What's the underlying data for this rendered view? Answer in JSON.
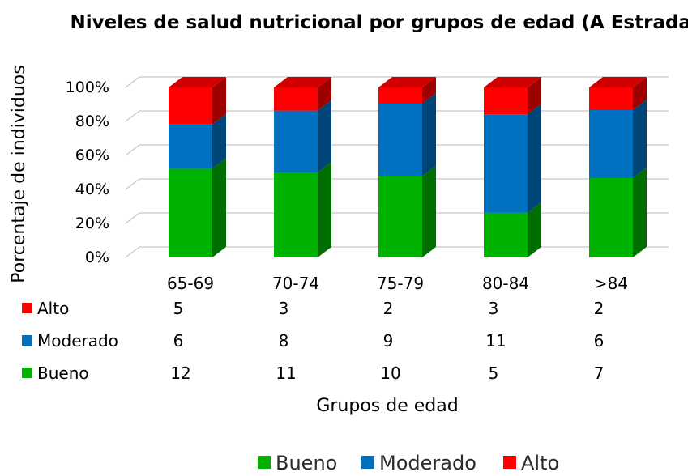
{
  "chart_data": {
    "type": "bar",
    "stacked": true,
    "percent_stacked": true,
    "three_d": true,
    "title": "Niveles de salud nutricional por grupos de edad (A Estrada)",
    "xlabel": "Grupos de edad",
    "ylabel": "Porcentaje de individuos",
    "categories": [
      "65-69",
      "70-74",
      "75-79",
      "80-84",
      ">84"
    ],
    "yticks": [
      "0%",
      "20%",
      "40%",
      "60%",
      "80%",
      "100%"
    ],
    "ylim": [
      0,
      100
    ],
    "grid": true,
    "legend_position": "bottom",
    "series": [
      {
        "name": "Bueno",
        "color": "#00b200",
        "values": [
          12,
          11,
          10,
          5,
          7
        ]
      },
      {
        "name": "Moderado",
        "color": "#0070c0",
        "values": [
          6,
          8,
          9,
          11,
          6
        ]
      },
      {
        "name": "Alto",
        "color": "#ff0000",
        "values": [
          5,
          3,
          2,
          3,
          2
        ]
      }
    ],
    "data_table_order": [
      "Alto",
      "Moderado",
      "Bueno"
    ]
  }
}
